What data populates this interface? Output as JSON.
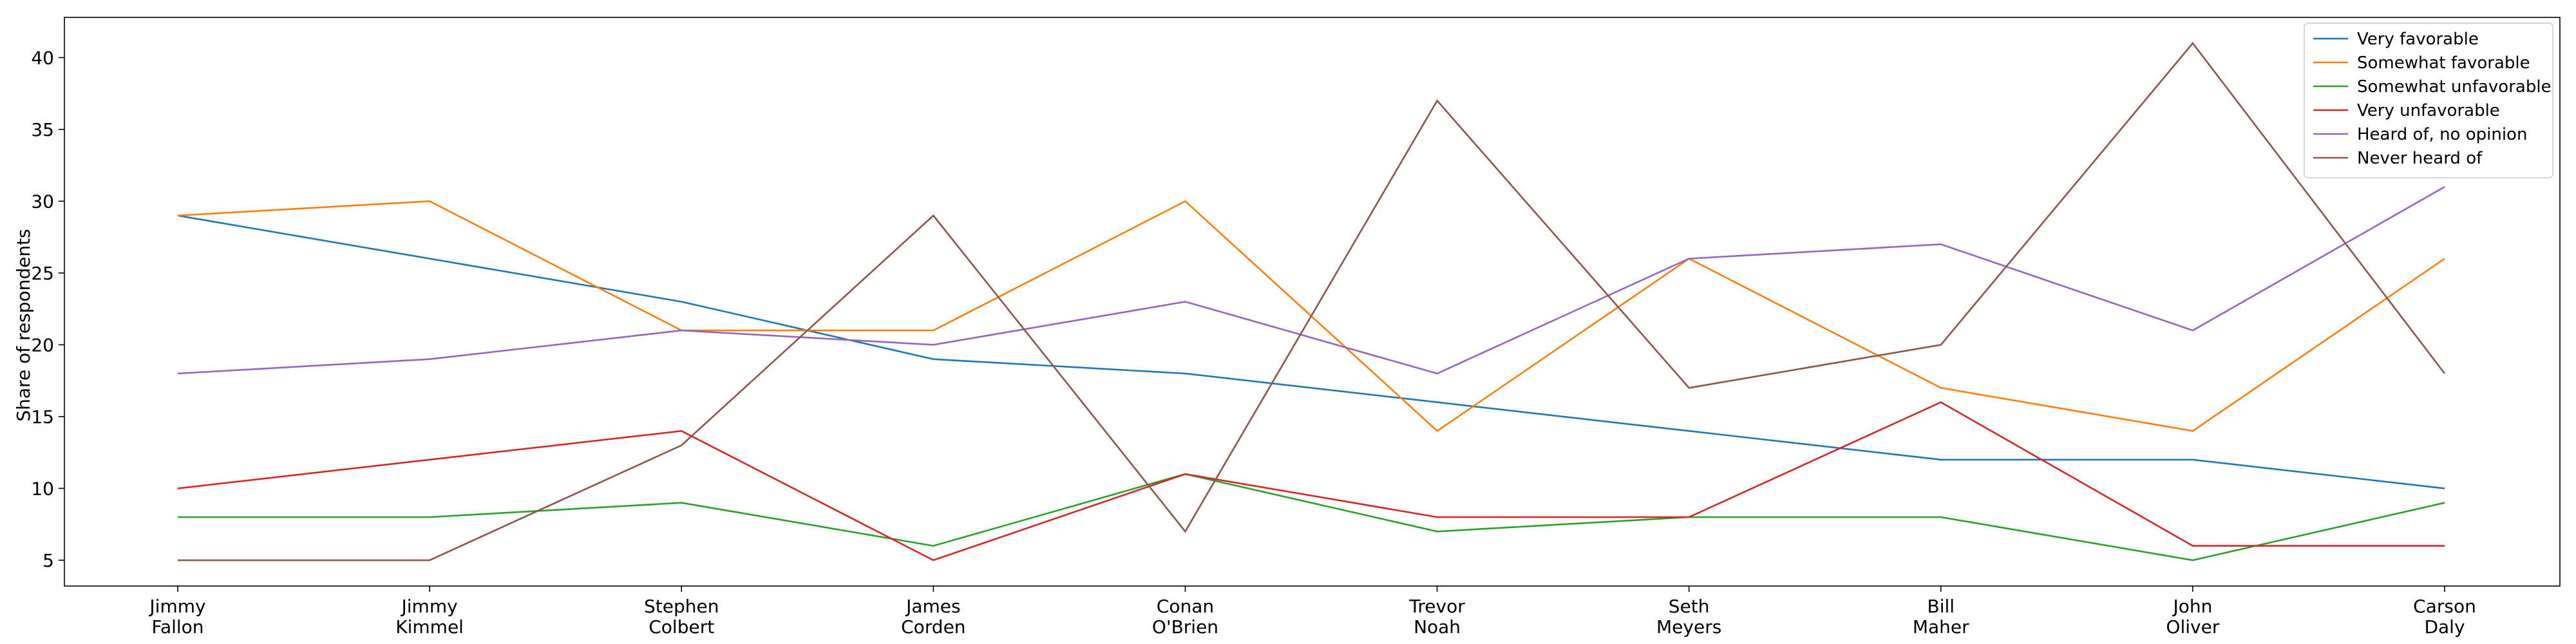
{
  "chart_data": {
    "type": "line",
    "categories": [
      [
        "Jimmy",
        "Fallon"
      ],
      [
        "Jimmy",
        "Kimmel"
      ],
      [
        "Stephen",
        "Colbert"
      ],
      [
        "James",
        "Corden"
      ],
      [
        "Conan",
        "O'Brien"
      ],
      [
        "Trevor",
        "Noah"
      ],
      [
        "Seth",
        "Meyers"
      ],
      [
        "Bill",
        "Maher"
      ],
      [
        "John",
        "Oliver"
      ],
      [
        "Carson",
        "Daly"
      ]
    ],
    "series": [
      {
        "name": "Very favorable",
        "color": "#1f77b4",
        "values": [
          29,
          26,
          23,
          19,
          18,
          16,
          14,
          12,
          12,
          10
        ]
      },
      {
        "name": "Somewhat favorable",
        "color": "#ff7f0e",
        "values": [
          29,
          30,
          21,
          21,
          30,
          14,
          26,
          17,
          14,
          26
        ]
      },
      {
        "name": "Somewhat unfavorable",
        "color": "#2ca02c",
        "values": [
          8,
          8,
          9,
          6,
          11,
          7,
          8,
          8,
          5,
          9
        ]
      },
      {
        "name": "Very unfavorable",
        "color": "#d62728",
        "values": [
          10,
          12,
          14,
          5,
          11,
          8,
          8,
          16,
          6,
          6
        ]
      },
      {
        "name": "Heard of, no opinion",
        "color": "#9467bd",
        "values": [
          18,
          19,
          21,
          20,
          23,
          18,
          26,
          27,
          21,
          31
        ]
      },
      {
        "name": "Never heard of",
        "color": "#8c564b",
        "values": [
          5,
          5,
          13,
          29,
          7,
          37,
          17,
          20,
          41,
          18
        ]
      }
    ],
    "title": "",
    "xlabel": "",
    "ylabel": "Share of respondents",
    "ylim": [
      3.2,
      42.8
    ],
    "yticks": [
      5,
      10,
      15,
      20,
      25,
      30,
      35,
      40
    ],
    "grid": false,
    "legend_position": "top-right"
  }
}
